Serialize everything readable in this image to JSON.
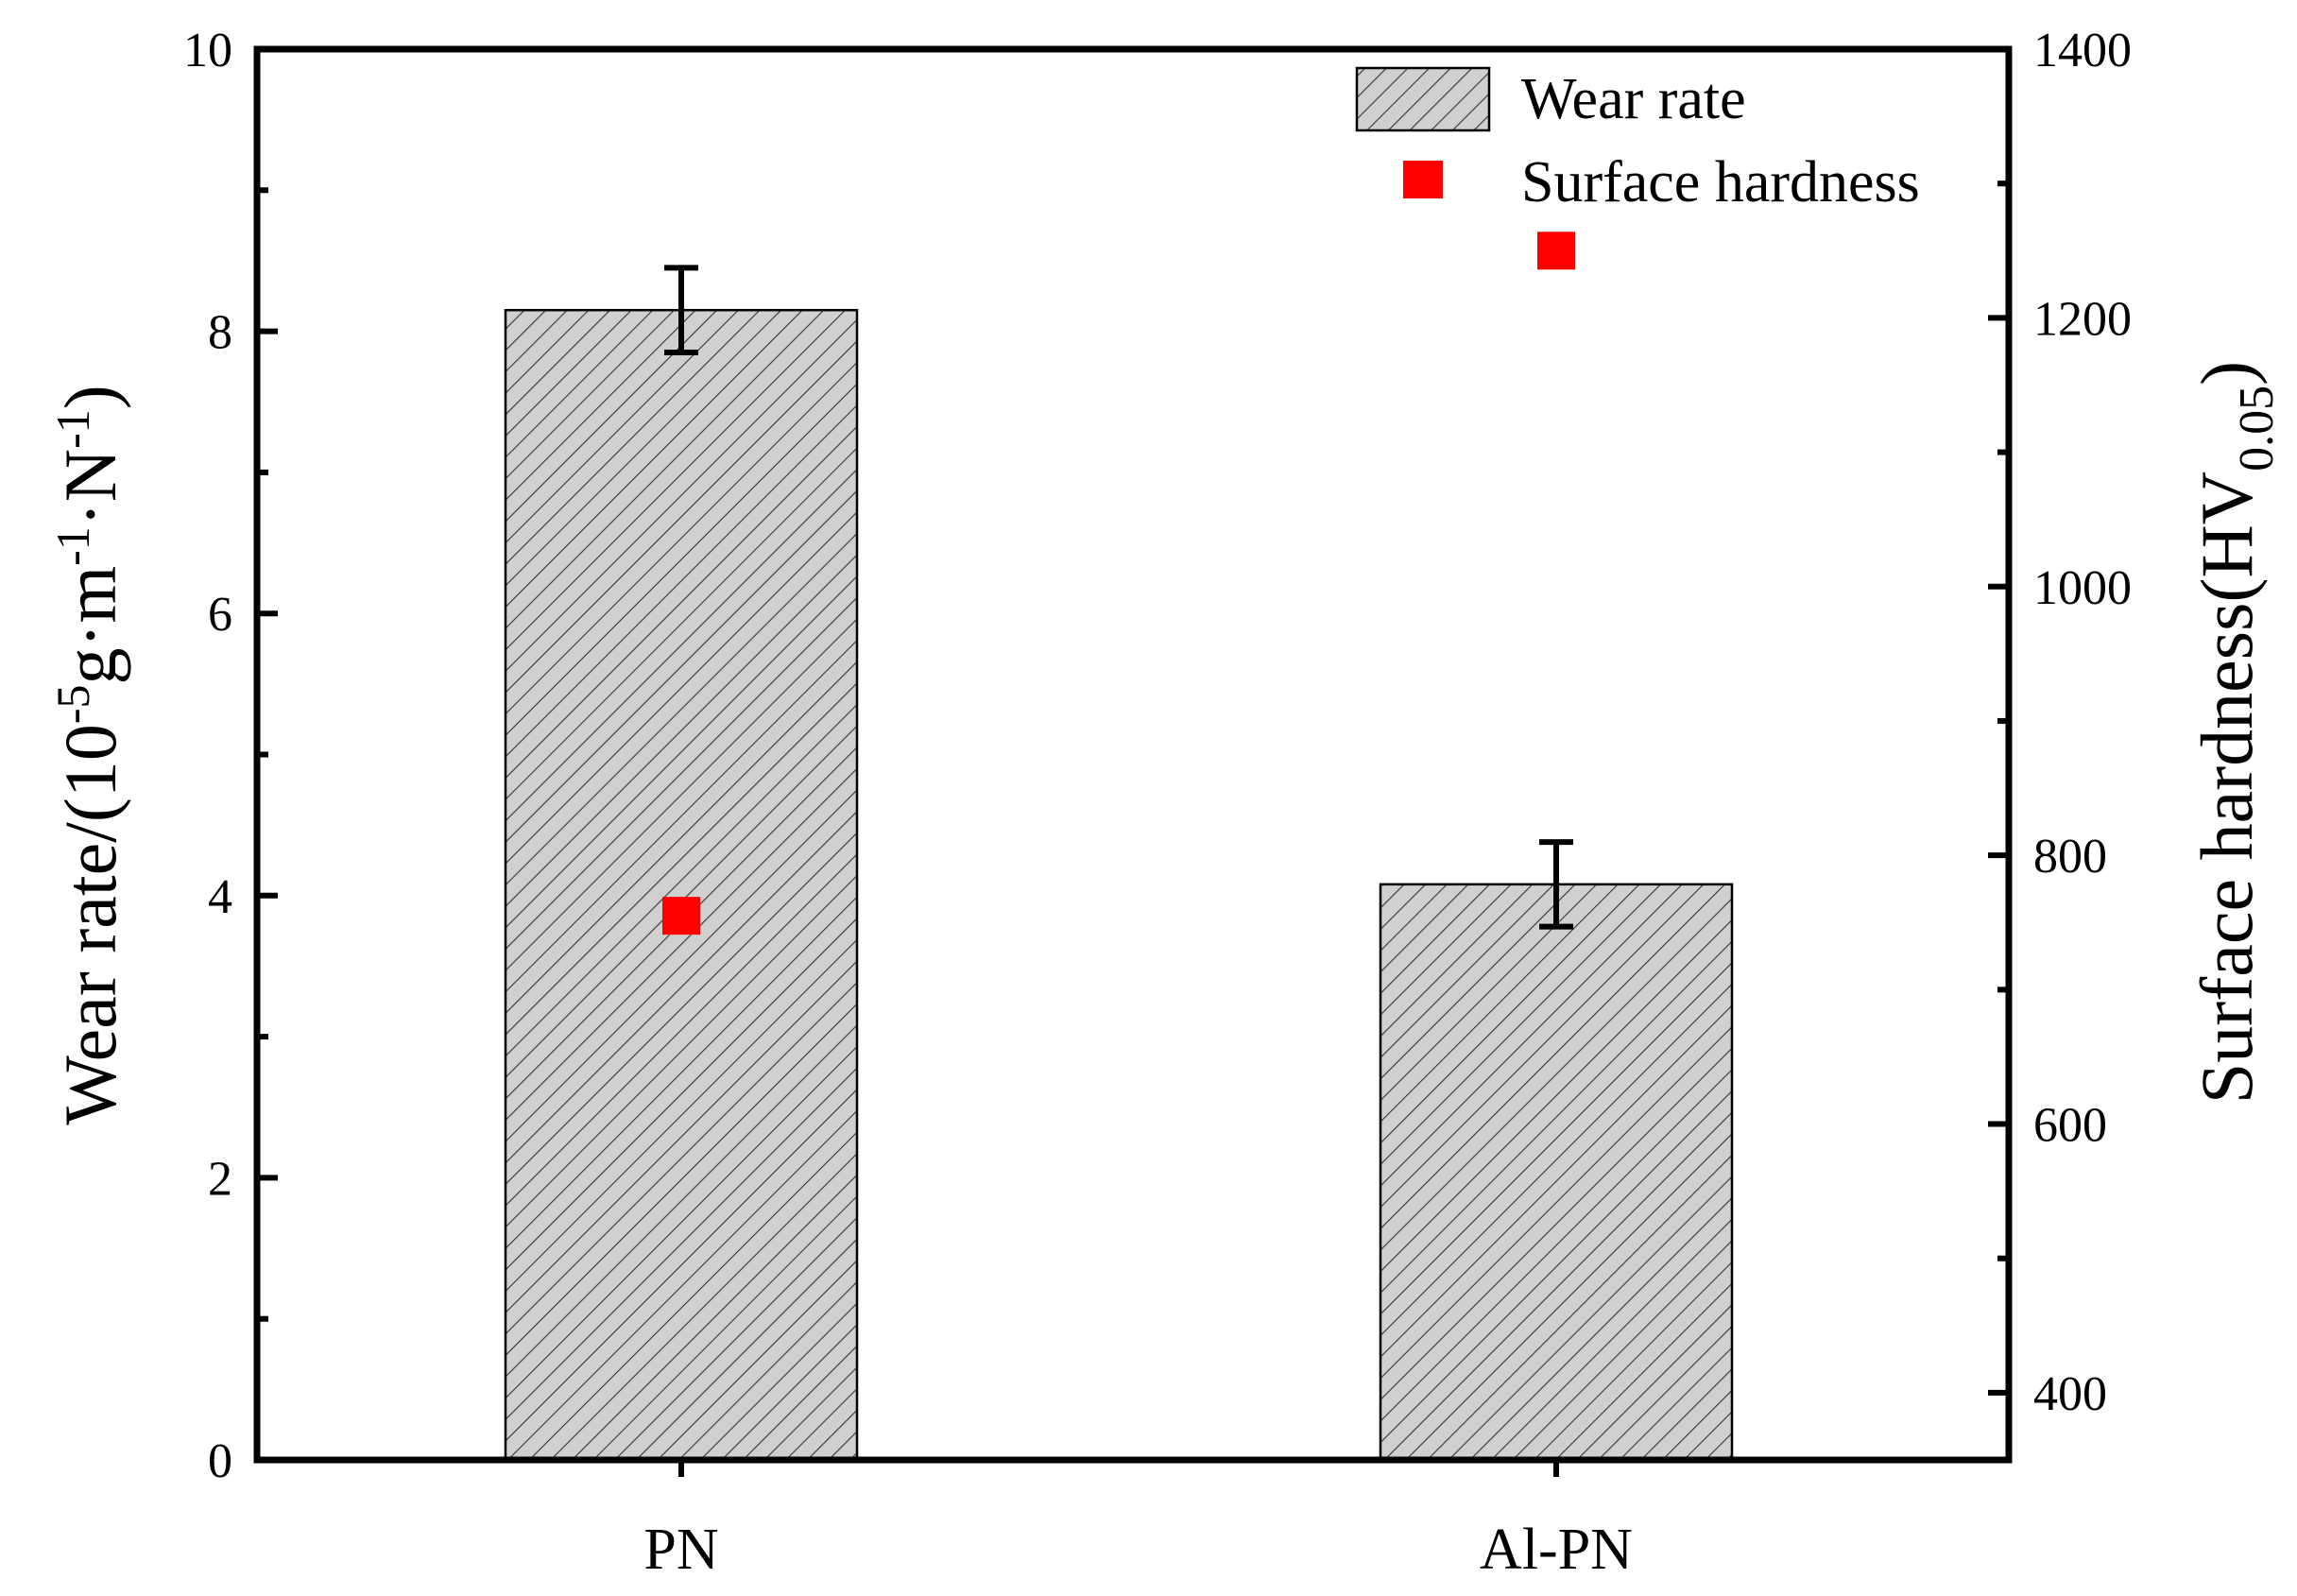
{
  "chart_data": {
    "type": "bar",
    "categories": [
      "PN",
      "Al-PN"
    ],
    "series": [
      {
        "name": "Wear rate",
        "axis": "left",
        "kind": "bar",
        "values": [
          8.15,
          4.08
        ],
        "errors": [
          0.3,
          0.3
        ],
        "fill": "hatched-gray"
      },
      {
        "name": "Surface hardness",
        "axis": "right",
        "kind": "scatter",
        "values": [
          755,
          1250
        ],
        "color": "#ff0000"
      }
    ],
    "ylabel": {
      "prefix": "Wear rate/(10",
      "exp1": "-5",
      "mid1": "g·m",
      "exp2": "-1",
      "mid2": "·N",
      "exp3": "-1",
      "suffix": ")"
    },
    "y2label": {
      "prefix": "Surface hardness(HV",
      "sub": "0.05",
      "suffix": ")"
    },
    "ylim": [
      0,
      10
    ],
    "y2lim": [
      350,
      1400
    ],
    "yticks": [
      "0",
      "2",
      "4",
      "6",
      "8",
      "10"
    ],
    "y2ticks": [
      "400",
      "600",
      "800",
      "1000",
      "1200",
      "1400"
    ],
    "grid": false,
    "legend_position": "top-right",
    "colors": {
      "bar_fill": "#d0d0d0",
      "hatch": "#333333",
      "marker": "#ff0000"
    }
  }
}
